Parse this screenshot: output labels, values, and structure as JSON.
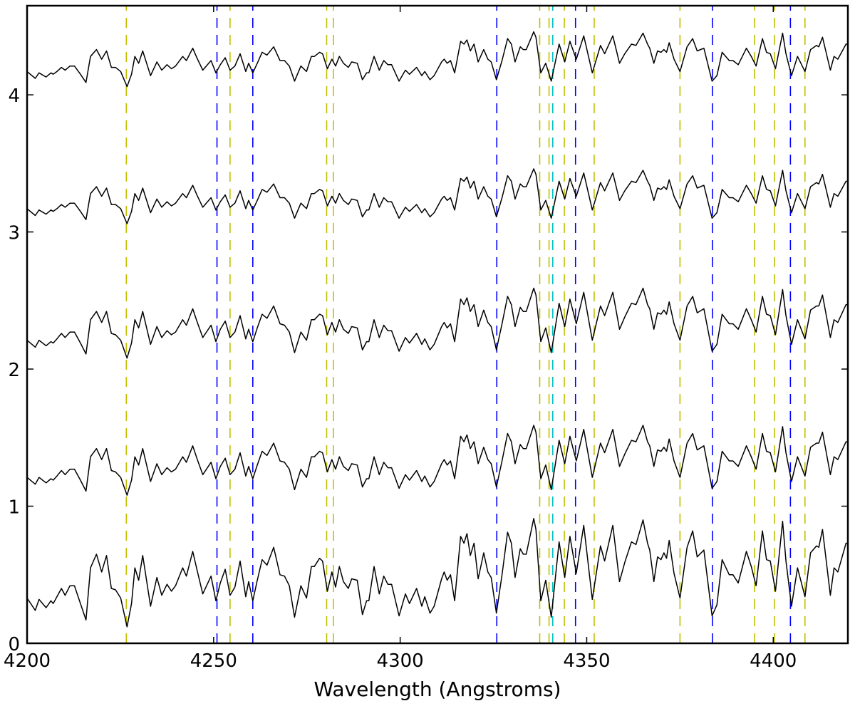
{
  "chart_data": {
    "type": "line",
    "title": "",
    "xlabel": "Wavelength (Angstroms)",
    "ylabel": "",
    "xlim": [
      4200,
      4420
    ],
    "ylim": [
      0,
      4.65
    ],
    "xticks": [
      4200,
      4250,
      4300,
      4350,
      4400
    ],
    "yticks": [
      0,
      1,
      2,
      3,
      4
    ],
    "grid": false,
    "line_color": "#000000",
    "x": [
      4200.0,
      4202.2,
      4203.2,
      4205.1,
      4206.4,
      4207.0,
      4208.0,
      4209.2,
      4210.2,
      4211.5,
      4212.7,
      4214.3,
      4215.8,
      4217.0,
      4218.6,
      4220.0,
      4221.3,
      4222.6,
      4223.7,
      4225.1,
      4226.8,
      4228.0,
      4228.9,
      4229.9,
      4231.0,
      4233.1,
      4234.8,
      4236.1,
      4237.5,
      4238.7,
      4239.8,
      4241.7,
      4242.7,
      4244.4,
      4245.5,
      4247.1,
      4249.3,
      4250.6,
      4251.8,
      4253.1,
      4254.4,
      4255.7,
      4257.1,
      4258.6,
      4259.4,
      4260.5,
      4261.7,
      4263.0,
      4264.3,
      4266.1,
      4267.8,
      4269.0,
      4270.3,
      4271.7,
      4273.4,
      4274.9,
      4276.2,
      4277.0,
      4278.4,
      4279.2,
      4280.5,
      4281.7,
      4282.7,
      4283.7,
      4284.8,
      4286.1,
      4287.0,
      4288.5,
      4289.9,
      4291.0,
      4291.6,
      4293.0,
      4294.4,
      4295.6,
      4296.7,
      4297.7,
      4299.7,
      4301.4,
      4302.5,
      4304.4,
      4305.8,
      4306.6,
      4308.0,
      4309.1,
      4311.1,
      4311.8,
      4312.6,
      4313.5,
      4314.6,
      4316.2,
      4317.1,
      4317.9,
      4318.8,
      4319.8,
      4320.9,
      4322.4,
      4323.5,
      4324.4,
      4325.8,
      4327.3,
      4328.8,
      4329.8,
      4330.8,
      4332.2,
      4333.0,
      4333.8,
      4335.8,
      4336.4,
      4337.7,
      4339.0,
      4340.5,
      4342.6,
      4344.1,
      4345.5,
      4347.2,
      4349.2,
      4351.5,
      4353.7,
      4354.8,
      4357.0,
      4358.8,
      4360.2,
      4362.0,
      4363.2,
      4365.1,
      4366.3,
      4366.9,
      4368.0,
      4369.0,
      4369.9,
      4370.7,
      4371.4,
      4372.1,
      4373.4,
      4375.0,
      4376.9,
      4378.4,
      4379.6,
      4381.4,
      4383.6,
      4384.9,
      4386.3,
      4388.2,
      4389.2,
      4390.6,
      4392.8,
      4394.1,
      4395.4,
      4397.1,
      4398.2,
      4399.2,
      4400.6,
      4402.5,
      4403.4,
      4404.9,
      4406.5,
      4408.5,
      4410.0,
      4411.6,
      4412.2,
      4413.2,
      4415.3,
      4416.3,
      4417.3,
      4419.5,
      4420.0
    ],
    "series": [
      {
        "values": [
          0.33,
          0.24,
          0.32,
          0.26,
          0.31,
          0.29,
          0.34,
          0.4,
          0.35,
          0.42,
          0.42,
          0.29,
          0.17,
          0.55,
          0.65,
          0.52,
          0.64,
          0.4,
          0.39,
          0.33,
          0.12,
          0.29,
          0.55,
          0.46,
          0.64,
          0.27,
          0.48,
          0.35,
          0.43,
          0.38,
          0.42,
          0.55,
          0.49,
          0.67,
          0.54,
          0.36,
          0.49,
          0.31,
          0.44,
          0.54,
          0.35,
          0.41,
          0.6,
          0.34,
          0.45,
          0.31,
          0.46,
          0.61,
          0.57,
          0.7,
          0.5,
          0.49,
          0.42,
          0.19,
          0.42,
          0.33,
          0.56,
          0.56,
          0.62,
          0.6,
          0.38,
          0.52,
          0.41,
          0.56,
          0.45,
          0.4,
          0.47,
          0.46,
          0.21,
          0.31,
          0.31,
          0.56,
          0.36,
          0.49,
          0.43,
          0.43,
          0.2,
          0.36,
          0.29,
          0.4,
          0.27,
          0.34,
          0.22,
          0.27,
          0.47,
          0.52,
          0.46,
          0.5,
          0.31,
          0.78,
          0.73,
          0.8,
          0.64,
          0.73,
          0.47,
          0.66,
          0.52,
          0.48,
          0.22,
          0.5,
          0.81,
          0.73,
          0.48,
          0.69,
          0.65,
          0.65,
          0.91,
          0.83,
          0.31,
          0.46,
          0.19,
          0.74,
          0.48,
          0.78,
          0.51,
          0.86,
          0.32,
          0.71,
          0.6,
          0.86,
          0.45,
          0.59,
          0.74,
          0.72,
          0.9,
          0.73,
          0.68,
          0.45,
          0.63,
          0.61,
          0.66,
          0.62,
          0.75,
          0.51,
          0.33,
          0.7,
          0.82,
          0.63,
          0.68,
          0.2,
          0.28,
          0.61,
          0.5,
          0.5,
          0.44,
          0.67,
          0.56,
          0.42,
          0.82,
          0.61,
          0.6,
          0.38,
          0.89,
          0.6,
          0.27,
          0.55,
          0.34,
          0.66,
          0.71,
          0.7,
          0.83,
          0.35,
          0.55,
          0.52,
          0.73,
          0.73
        ]
      },
      {
        "values": [
          1.21,
          1.16,
          1.21,
          1.17,
          1.2,
          1.19,
          1.22,
          1.26,
          1.23,
          1.27,
          1.27,
          1.19,
          1.11,
          1.36,
          1.42,
          1.34,
          1.42,
          1.26,
          1.25,
          1.21,
          1.08,
          1.19,
          1.36,
          1.3,
          1.42,
          1.18,
          1.31,
          1.23,
          1.28,
          1.25,
          1.27,
          1.36,
          1.32,
          1.44,
          1.35,
          1.23,
          1.32,
          1.2,
          1.29,
          1.35,
          1.23,
          1.27,
          1.39,
          1.22,
          1.29,
          1.2,
          1.3,
          1.4,
          1.37,
          1.46,
          1.33,
          1.32,
          1.27,
          1.12,
          1.27,
          1.21,
          1.36,
          1.36,
          1.4,
          1.39,
          1.25,
          1.34,
          1.27,
          1.36,
          1.29,
          1.26,
          1.31,
          1.3,
          1.14,
          1.2,
          1.2,
          1.36,
          1.23,
          1.32,
          1.28,
          1.28,
          1.13,
          1.23,
          1.19,
          1.26,
          1.18,
          1.22,
          1.14,
          1.18,
          1.31,
          1.34,
          1.3,
          1.33,
          1.2,
          1.51,
          1.47,
          1.52,
          1.42,
          1.47,
          1.31,
          1.43,
          1.34,
          1.31,
          1.14,
          1.33,
          1.53,
          1.47,
          1.31,
          1.45,
          1.42,
          1.42,
          1.59,
          1.54,
          1.2,
          1.3,
          1.12,
          1.48,
          1.31,
          1.51,
          1.33,
          1.56,
          1.21,
          1.46,
          1.39,
          1.56,
          1.29,
          1.38,
          1.48,
          1.47,
          1.59,
          1.47,
          1.44,
          1.29,
          1.41,
          1.4,
          1.43,
          1.4,
          1.49,
          1.33,
          1.21,
          1.46,
          1.53,
          1.41,
          1.44,
          1.13,
          1.18,
          1.4,
          1.33,
          1.33,
          1.29,
          1.44,
          1.36,
          1.27,
          1.53,
          1.4,
          1.39,
          1.25,
          1.58,
          1.39,
          1.18,
          1.36,
          1.22,
          1.43,
          1.46,
          1.46,
          1.54,
          1.23,
          1.36,
          1.34,
          1.47,
          1.47
        ]
      },
      {
        "values": [
          2.21,
          2.16,
          2.21,
          2.17,
          2.2,
          2.19,
          2.22,
          2.26,
          2.23,
          2.27,
          2.27,
          2.19,
          2.11,
          2.36,
          2.42,
          2.34,
          2.42,
          2.26,
          2.25,
          2.21,
          2.08,
          2.19,
          2.36,
          2.3,
          2.42,
          2.18,
          2.31,
          2.23,
          2.28,
          2.25,
          2.27,
          2.36,
          2.32,
          2.44,
          2.35,
          2.23,
          2.32,
          2.2,
          2.29,
          2.35,
          2.23,
          2.27,
          2.39,
          2.22,
          2.29,
          2.2,
          2.3,
          2.4,
          2.37,
          2.46,
          2.33,
          2.32,
          2.27,
          2.12,
          2.27,
          2.21,
          2.36,
          2.36,
          2.4,
          2.39,
          2.25,
          2.34,
          2.27,
          2.36,
          2.29,
          2.26,
          2.31,
          2.3,
          2.14,
          2.2,
          2.2,
          2.36,
          2.23,
          2.32,
          2.28,
          2.28,
          2.13,
          2.23,
          2.19,
          2.26,
          2.18,
          2.22,
          2.14,
          2.18,
          2.31,
          2.34,
          2.3,
          2.33,
          2.2,
          2.51,
          2.47,
          2.52,
          2.42,
          2.47,
          2.31,
          2.43,
          2.34,
          2.31,
          2.14,
          2.33,
          2.53,
          2.47,
          2.31,
          2.45,
          2.42,
          2.42,
          2.59,
          2.54,
          2.2,
          2.3,
          2.12,
          2.48,
          2.31,
          2.51,
          2.33,
          2.56,
          2.21,
          2.46,
          2.39,
          2.56,
          2.29,
          2.38,
          2.48,
          2.47,
          2.59,
          2.47,
          2.44,
          2.29,
          2.41,
          2.4,
          2.43,
          2.4,
          2.49,
          2.33,
          2.21,
          2.46,
          2.53,
          2.41,
          2.44,
          2.13,
          2.18,
          2.4,
          2.33,
          2.33,
          2.29,
          2.44,
          2.36,
          2.27,
          2.53,
          2.4,
          2.39,
          2.25,
          2.58,
          2.39,
          2.18,
          2.36,
          2.22,
          2.43,
          2.46,
          2.46,
          2.54,
          2.23,
          2.36,
          2.34,
          2.47,
          2.47
        ]
      },
      {
        "values": [
          3.17,
          3.12,
          3.16,
          3.13,
          3.16,
          3.15,
          3.17,
          3.2,
          3.18,
          3.21,
          3.21,
          3.15,
          3.09,
          3.28,
          3.33,
          3.26,
          3.32,
          3.2,
          3.2,
          3.17,
          3.06,
          3.15,
          3.28,
          3.23,
          3.32,
          3.14,
          3.24,
          3.18,
          3.22,
          3.19,
          3.21,
          3.28,
          3.25,
          3.34,
          3.27,
          3.18,
          3.25,
          3.16,
          3.22,
          3.27,
          3.18,
          3.21,
          3.3,
          3.17,
          3.23,
          3.16,
          3.23,
          3.31,
          3.29,
          3.35,
          3.25,
          3.25,
          3.21,
          3.1,
          3.21,
          3.17,
          3.28,
          3.28,
          3.31,
          3.3,
          3.19,
          3.26,
          3.21,
          3.28,
          3.23,
          3.2,
          3.24,
          3.23,
          3.11,
          3.16,
          3.16,
          3.28,
          3.18,
          3.25,
          3.22,
          3.22,
          3.1,
          3.18,
          3.15,
          3.2,
          3.14,
          3.17,
          3.11,
          3.14,
          3.24,
          3.26,
          3.23,
          3.25,
          3.16,
          3.39,
          3.37,
          3.4,
          3.32,
          3.37,
          3.24,
          3.33,
          3.26,
          3.24,
          3.11,
          3.25,
          3.41,
          3.37,
          3.24,
          3.35,
          3.33,
          3.33,
          3.46,
          3.42,
          3.16,
          3.23,
          3.1,
          3.37,
          3.24,
          3.39,
          3.26,
          3.43,
          3.16,
          3.36,
          3.3,
          3.43,
          3.23,
          3.3,
          3.37,
          3.36,
          3.45,
          3.37,
          3.34,
          3.23,
          3.32,
          3.31,
          3.33,
          3.31,
          3.38,
          3.26,
          3.17,
          3.35,
          3.41,
          3.32,
          3.34,
          3.1,
          3.14,
          3.31,
          3.25,
          3.25,
          3.22,
          3.34,
          3.28,
          3.21,
          3.41,
          3.31,
          3.3,
          3.19,
          3.45,
          3.3,
          3.14,
          3.28,
          3.17,
          3.33,
          3.36,
          3.35,
          3.42,
          3.18,
          3.28,
          3.26,
          3.37,
          3.37
        ]
      },
      {
        "values": [
          4.17,
          4.12,
          4.16,
          4.13,
          4.16,
          4.15,
          4.17,
          4.2,
          4.18,
          4.21,
          4.21,
          4.15,
          4.09,
          4.28,
          4.33,
          4.26,
          4.32,
          4.2,
          4.2,
          4.17,
          4.06,
          4.15,
          4.28,
          4.23,
          4.32,
          4.14,
          4.24,
          4.18,
          4.22,
          4.19,
          4.21,
          4.28,
          4.25,
          4.34,
          4.27,
          4.18,
          4.25,
          4.16,
          4.22,
          4.27,
          4.18,
          4.21,
          4.3,
          4.17,
          4.23,
          4.16,
          4.23,
          4.31,
          4.29,
          4.35,
          4.25,
          4.25,
          4.21,
          4.1,
          4.21,
          4.17,
          4.28,
          4.28,
          4.31,
          4.3,
          4.19,
          4.26,
          4.21,
          4.28,
          4.23,
          4.2,
          4.24,
          4.23,
          4.11,
          4.16,
          4.16,
          4.28,
          4.18,
          4.25,
          4.22,
          4.22,
          4.1,
          4.18,
          4.15,
          4.2,
          4.14,
          4.17,
          4.11,
          4.14,
          4.24,
          4.26,
          4.23,
          4.25,
          4.16,
          4.39,
          4.37,
          4.4,
          4.32,
          4.37,
          4.24,
          4.33,
          4.26,
          4.24,
          4.11,
          4.25,
          4.41,
          4.37,
          4.24,
          4.35,
          4.33,
          4.33,
          4.46,
          4.42,
          4.16,
          4.23,
          4.1,
          4.37,
          4.24,
          4.39,
          4.26,
          4.43,
          4.16,
          4.36,
          4.3,
          4.43,
          4.23,
          4.3,
          4.37,
          4.36,
          4.45,
          4.37,
          4.34,
          4.23,
          4.32,
          4.31,
          4.33,
          4.31,
          4.38,
          4.26,
          4.17,
          4.35,
          4.41,
          4.32,
          4.34,
          4.1,
          4.14,
          4.31,
          4.25,
          4.25,
          4.22,
          4.34,
          4.28,
          4.21,
          4.41,
          4.31,
          4.3,
          4.19,
          4.45,
          4.3,
          4.14,
          4.28,
          4.17,
          4.33,
          4.36,
          4.35,
          4.42,
          4.18,
          4.28,
          4.26,
          4.37,
          4.37
        ]
      }
    ],
    "vertical_lines": [
      {
        "x": 4226.6,
        "color": "#bfbf00"
      },
      {
        "x": 4250.9,
        "color": "#0000ff"
      },
      {
        "x": 4254.4,
        "color": "#bfbf00"
      },
      {
        "x": 4260.5,
        "color": "#0000ff"
      },
      {
        "x": 4280.3,
        "color": "#bfbf00"
      },
      {
        "x": 4282.1,
        "color": "#bfbf00"
      },
      {
        "x": 4325.9,
        "color": "#0000ff"
      },
      {
        "x": 4337.4,
        "color": "#bfbf00"
      },
      {
        "x": 4339.9,
        "color": "#bfbf00"
      },
      {
        "x": 4340.9,
        "color": "#00bfbf"
      },
      {
        "x": 4344.0,
        "color": "#bfbf00"
      },
      {
        "x": 4347.0,
        "color": "#0000ff"
      },
      {
        "x": 4352.0,
        "color": "#bfbf00"
      },
      {
        "x": 4375.0,
        "color": "#bfbf00"
      },
      {
        "x": 4383.7,
        "color": "#0000ff"
      },
      {
        "x": 4395.0,
        "color": "#bfbf00"
      },
      {
        "x": 4400.3,
        "color": "#bfbf00"
      },
      {
        "x": 4404.6,
        "color": "#0000ff"
      },
      {
        "x": 4408.5,
        "color": "#bfbf00"
      }
    ],
    "vertical_line_style": "dashed"
  }
}
